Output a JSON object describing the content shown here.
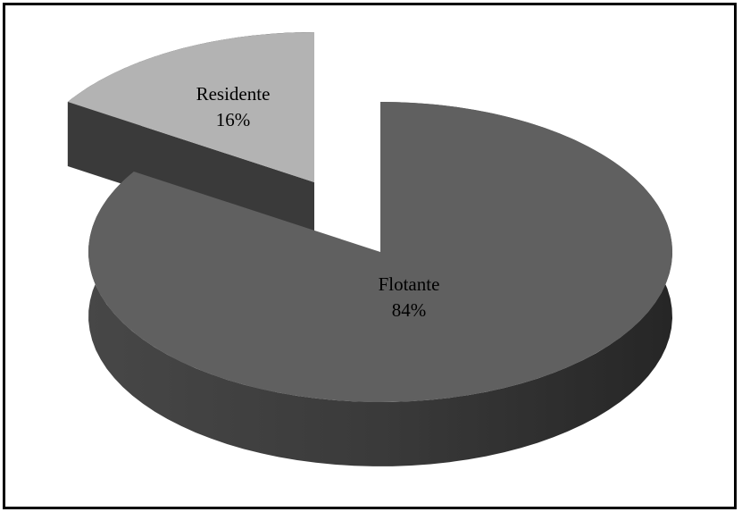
{
  "chart_data": {
    "type": "pie",
    "title": "",
    "style": "3d-exploded",
    "slices": [
      {
        "name": "Flotante",
        "value": 84,
        "label": "84%",
        "color": "#606060"
      },
      {
        "name": "Residente",
        "value": 16,
        "label": "16%",
        "color": "#b3b3b3"
      }
    ],
    "legend": "none",
    "data_labels": "inside"
  }
}
